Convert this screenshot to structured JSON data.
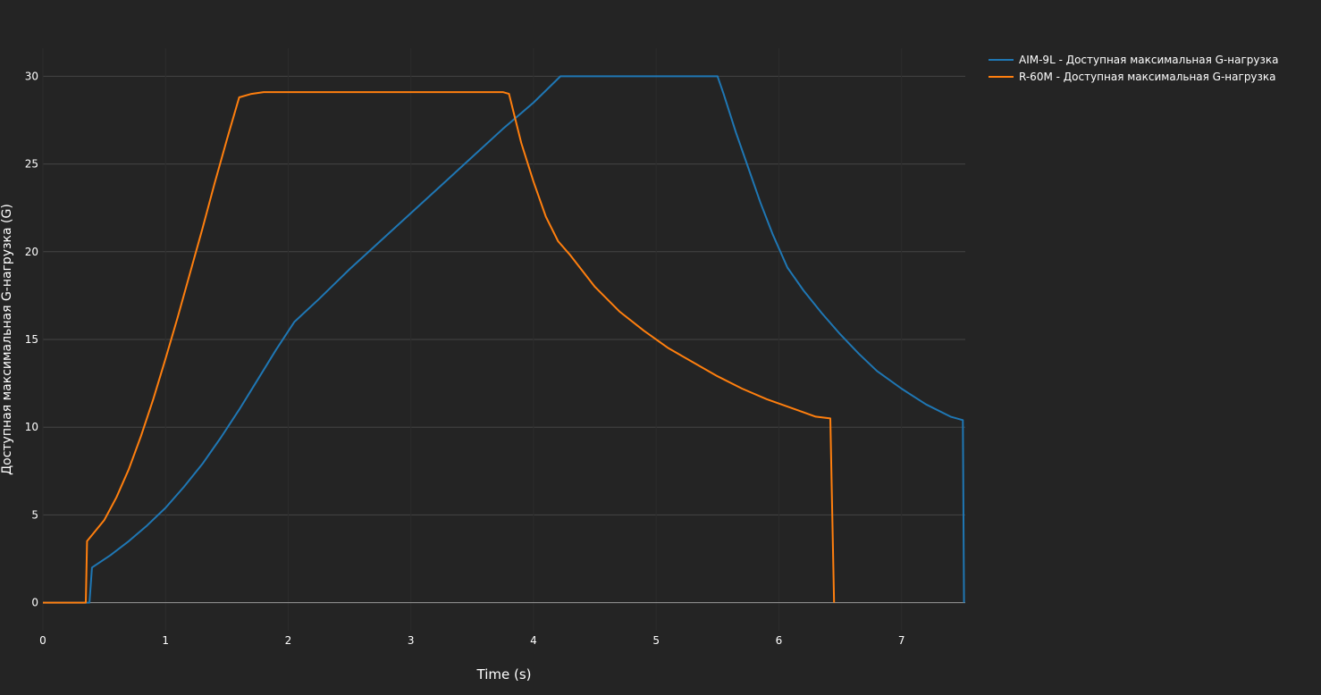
{
  "colors": {
    "background": "#242424",
    "grid": "#444444",
    "zeroline": "#9a9a9a",
    "text": "#ffffff",
    "series": [
      "#1f77b4",
      "#ff7f0e"
    ]
  },
  "chart_data": {
    "type": "line",
    "title": "",
    "xlabel": "Time (s)",
    "ylabel": "Доступная максимальная G-нагрузка (G)",
    "xlim": [
      0,
      7.52
    ],
    "ylim": [
      -1.6,
      31.6
    ],
    "xticks": [
      "0",
      "1",
      "2",
      "3",
      "4",
      "5",
      "6",
      "7"
    ],
    "yticks": [
      "0",
      "5",
      "10",
      "15",
      "20",
      "25",
      "30"
    ],
    "grid": true,
    "legend_position": "top-right (outside plot)",
    "series": [
      {
        "name": "AIM-9L - Доступная максимальная G-нагрузка",
        "color": "#1f77b4",
        "x": [
          0,
          0.38,
          0.4,
          0.55,
          0.7,
          0.85,
          1.0,
          1.15,
          1.3,
          1.45,
          1.6,
          1.75,
          1.9,
          2.05,
          2.25,
          2.5,
          2.75,
          3.0,
          3.25,
          3.5,
          3.75,
          4.0,
          4.22,
          5.5,
          5.55,
          5.65,
          5.75,
          5.85,
          5.95,
          6.07,
          6.2,
          6.35,
          6.5,
          6.65,
          6.8,
          7.0,
          7.2,
          7.4,
          7.5,
          7.51
        ],
        "y": [
          0,
          0,
          2.0,
          2.7,
          3.5,
          4.4,
          5.4,
          6.6,
          7.9,
          9.4,
          11.0,
          12.7,
          14.4,
          16.0,
          17.3,
          19.0,
          20.6,
          22.2,
          23.8,
          25.4,
          27.0,
          28.5,
          30.0,
          30.0,
          29.0,
          26.8,
          24.8,
          22.8,
          21.0,
          19.1,
          17.8,
          16.5,
          15.3,
          14.2,
          13.2,
          12.2,
          11.3,
          10.6,
          10.4,
          0
        ]
      },
      {
        "name": "R-60M - Доступная максимальная G-нагрузка",
        "color": "#ff7f0e",
        "x": [
          0,
          0.35,
          0.36,
          0.5,
          0.6,
          0.7,
          0.8,
          0.9,
          1.0,
          1.1,
          1.2,
          1.3,
          1.4,
          1.5,
          1.6,
          1.7,
          1.8,
          3.75,
          3.8,
          3.9,
          4.0,
          4.1,
          4.2,
          4.3,
          4.5,
          4.7,
          4.9,
          5.1,
          5.3,
          5.5,
          5.7,
          5.9,
          6.1,
          6.3,
          6.42,
          6.45
        ],
        "y": [
          0,
          0,
          3.5,
          4.7,
          6.0,
          7.6,
          9.5,
          11.6,
          13.9,
          16.3,
          18.8,
          21.3,
          23.9,
          26.4,
          28.8,
          29.0,
          29.1,
          29.1,
          29.0,
          26.2,
          24.0,
          22.0,
          20.6,
          19.8,
          18.0,
          16.6,
          15.5,
          14.5,
          13.7,
          12.9,
          12.2,
          11.6,
          11.1,
          10.6,
          10.5,
          0
        ]
      }
    ]
  }
}
